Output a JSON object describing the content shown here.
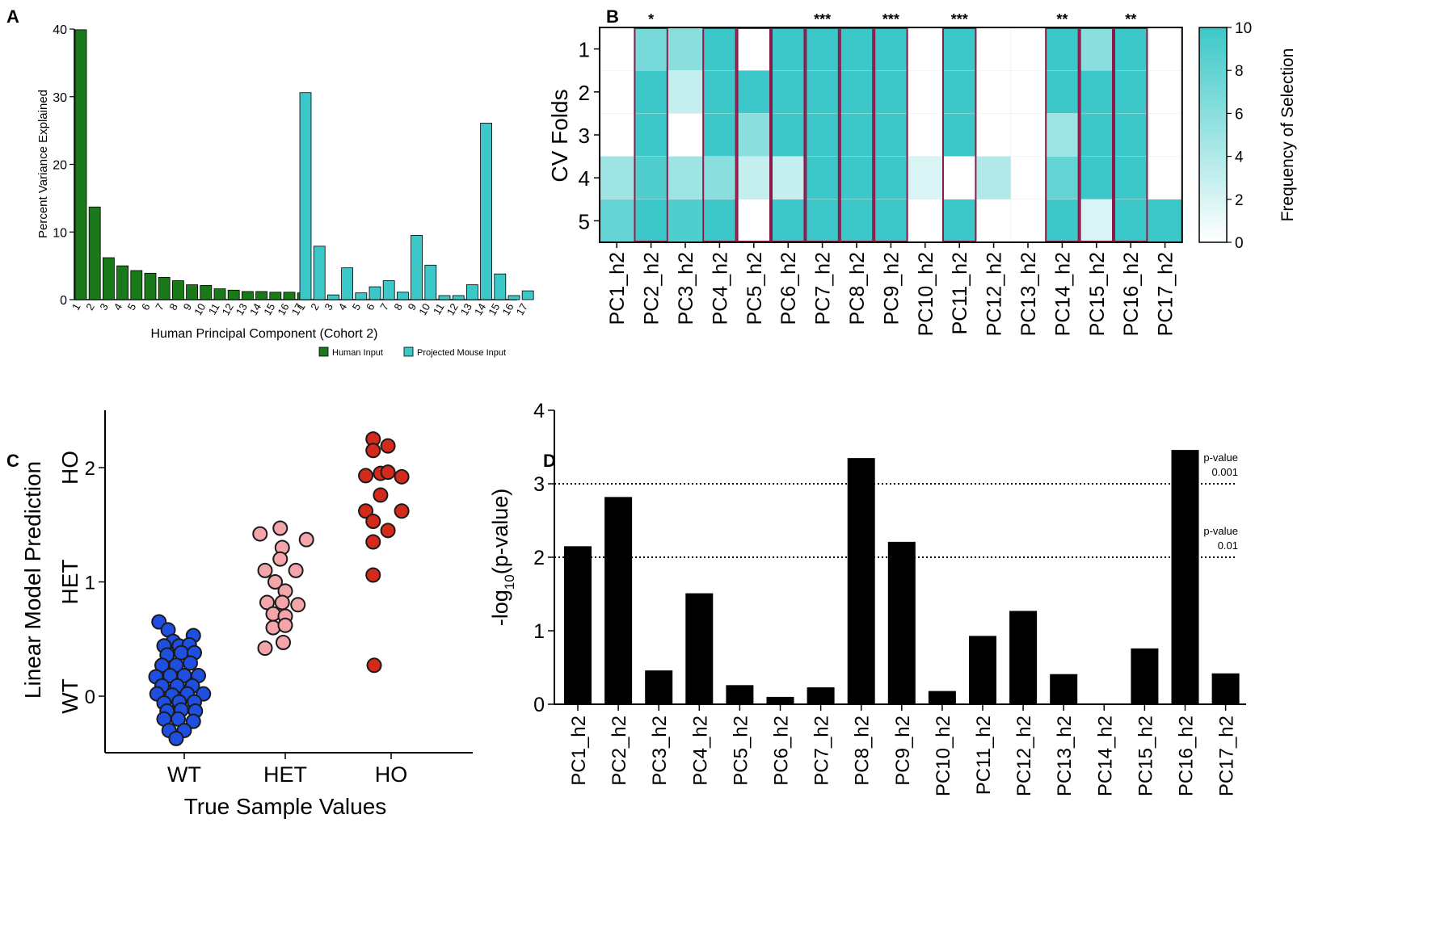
{
  "chart_data": [
    {
      "panel": "A",
      "type": "bar",
      "title": "",
      "ylabel": "Percent Variance Explained",
      "xlabel": "Human Principal Component (Cohort 2)",
      "ylim": [
        0,
        40
      ],
      "yticks": [
        0,
        10,
        20,
        30,
        40
      ],
      "categories": [
        "1",
        "2",
        "3",
        "4",
        "5",
        "6",
        "7",
        "8",
        "9",
        "10",
        "11",
        "12",
        "13",
        "14",
        "15",
        "16",
        "17"
      ],
      "series": [
        {
          "name": "Human Input",
          "color": "#1a7a1a",
          "values": [
            39.9,
            13.7,
            6.2,
            5.0,
            4.3,
            3.9,
            3.3,
            2.8,
            2.2,
            2.1,
            1.6,
            1.4,
            1.2,
            1.2,
            1.1,
            1.1,
            1.0
          ]
        },
        {
          "name": "Projected Mouse Input",
          "color": "#3cc8c8",
          "values": [
            30.6,
            7.9,
            0.7,
            4.7,
            1.0,
            1.9,
            2.8,
            1.1,
            9.5,
            5.1,
            0.6,
            0.6,
            2.2,
            26.1,
            3.8,
            0.6,
            1.3
          ]
        }
      ],
      "legend": "bottom-right"
    },
    {
      "panel": "B",
      "type": "heatmap",
      "ylabel": "CV Folds",
      "colorbar_label": "Frequency of Selection",
      "colorbar_ticks": [
        0,
        2,
        4,
        6,
        8,
        10
      ],
      "zlim": [
        0,
        10
      ],
      "rows": [
        "1",
        "2",
        "3",
        "4",
        "5"
      ],
      "columns": [
        "PC1_h2",
        "PC2_h2",
        "PC3_h2",
        "PC4_h2",
        "PC5_h2",
        "PC6_h2",
        "PC7_h2",
        "PC8_h2",
        "PC9_h2",
        "PC10_h2",
        "PC11_h2",
        "PC12_h2",
        "PC13_h2",
        "PC14_h2",
        "PC15_h2",
        "PC16_h2",
        "PC17_h2"
      ],
      "significance": [
        "",
        "*",
        "",
        "",
        "",
        "",
        "***",
        "",
        "***",
        "",
        "***",
        "",
        "",
        "**",
        "",
        "**",
        ""
      ],
      "highlighted_columns": [
        "PC2_h2",
        "PC4_h2",
        "PC5_h2",
        "PC6_h2",
        "PC7_h2",
        "PC8_h2",
        "PC9_h2",
        "PC11_h2",
        "PC14_h2",
        "PC15_h2",
        "PC16_h2"
      ],
      "values": [
        [
          0,
          7,
          6,
          10,
          0,
          10,
          10,
          10,
          10,
          0,
          10,
          0,
          0,
          10,
          6,
          10,
          0
        ],
        [
          0,
          10,
          3,
          10,
          10,
          10,
          10,
          10,
          10,
          0,
          10,
          0,
          0,
          10,
          10,
          10,
          0
        ],
        [
          0,
          10,
          0,
          10,
          6,
          10,
          10,
          10,
          10,
          0,
          10,
          0,
          0,
          5,
          10,
          10,
          0
        ],
        [
          5,
          9,
          5,
          6,
          3,
          3,
          10,
          10,
          10,
          2,
          0,
          4,
          0,
          8,
          10,
          10,
          0
        ],
        [
          8,
          10,
          9,
          10,
          0,
          10,
          10,
          10,
          10,
          0,
          10,
          0,
          0,
          10,
          2,
          10,
          10
        ]
      ]
    },
    {
      "panel": "C",
      "type": "scatter",
      "title": "",
      "xlabel": "True Sample Values",
      "ylabel": "Linear Model Prediction",
      "categories": [
        "WT",
        "HET",
        "HO"
      ],
      "y_category_labels": [
        "WT",
        "HET",
        "HO"
      ],
      "yticks": [
        0,
        1,
        2
      ],
      "ylim": [
        -0.5,
        2.5
      ],
      "series": [
        {
          "name": "WT",
          "color": "#1f4fe0",
          "points": [
            [
              -0.25,
              0.65
            ],
            [
              -0.16,
              0.58
            ],
            [
              -0.11,
              0.48
            ],
            [
              0.09,
              0.53
            ],
            [
              -0.2,
              0.44
            ],
            [
              -0.05,
              0.44
            ],
            [
              0.05,
              0.45
            ],
            [
              -0.17,
              0.36
            ],
            [
              -0.03,
              0.38
            ],
            [
              0.1,
              0.38
            ],
            [
              -0.22,
              0.27
            ],
            [
              -0.08,
              0.27
            ],
            [
              0.06,
              0.29
            ],
            [
              -0.28,
              0.17
            ],
            [
              -0.14,
              0.18
            ],
            [
              0.0,
              0.18
            ],
            [
              0.14,
              0.18
            ],
            [
              -0.22,
              0.09
            ],
            [
              -0.07,
              0.09
            ],
            [
              0.08,
              0.09
            ],
            [
              -0.27,
              0.02
            ],
            [
              -0.12,
              0.01
            ],
            [
              0.03,
              0.02
            ],
            [
              0.19,
              0.02
            ],
            [
              -0.2,
              -0.06
            ],
            [
              -0.05,
              -0.05
            ],
            [
              0.1,
              -0.05
            ],
            [
              -0.17,
              -0.13
            ],
            [
              -0.03,
              -0.12
            ],
            [
              0.11,
              -0.13
            ],
            [
              -0.2,
              -0.2
            ],
            [
              -0.06,
              -0.2
            ],
            [
              0.09,
              -0.22
            ],
            [
              -0.15,
              -0.3
            ],
            [
              0.0,
              -0.3
            ],
            [
              -0.08,
              -0.37
            ]
          ]
        },
        {
          "name": "HET",
          "color": "#f4a5aa",
          "points": [
            [
              0.75,
              1.42
            ],
            [
              0.95,
              1.47
            ],
            [
              1.2,
              1.37
            ],
            [
              0.97,
              1.3
            ],
            [
              0.8,
              1.1
            ],
            [
              0.95,
              1.2
            ],
            [
              1.1,
              1.1
            ],
            [
              0.9,
              1.0
            ],
            [
              1.0,
              0.92
            ],
            [
              0.82,
              0.82
            ],
            [
              0.97,
              0.82
            ],
            [
              1.12,
              0.8
            ],
            [
              0.88,
              0.72
            ],
            [
              1.0,
              0.7
            ],
            [
              0.88,
              0.6
            ],
            [
              1.0,
              0.62
            ],
            [
              0.8,
              0.42
            ],
            [
              0.98,
              0.47
            ]
          ]
        },
        {
          "name": "HO",
          "color": "#d42a1c",
          "points": [
            [
              1.83,
              2.25
            ],
            [
              1.97,
              2.19
            ],
            [
              1.83,
              2.15
            ],
            [
              1.76,
              1.93
            ],
            [
              1.9,
              1.95
            ],
            [
              1.97,
              1.96
            ],
            [
              2.1,
              1.92
            ],
            [
              1.9,
              1.76
            ],
            [
              1.76,
              1.62
            ],
            [
              1.83,
              1.53
            ],
            [
              1.97,
              1.45
            ],
            [
              2.1,
              1.62
            ],
            [
              1.83,
              1.35
            ],
            [
              1.83,
              1.06
            ],
            [
              1.84,
              0.27
            ]
          ]
        }
      ]
    },
    {
      "panel": "D",
      "type": "bar",
      "title": "",
      "xlabel": "",
      "ylabel": "-log10(p-value)",
      "ylabel_main": "-log",
      "ylabel_sub": "10",
      "ylabel_tail": "(p-value)",
      "ylim": [
        0,
        4
      ],
      "yticks": [
        0,
        1,
        2,
        3,
        4
      ],
      "categories": [
        "PC1_h2",
        "PC2_h2",
        "PC3_h2",
        "PC4_h2",
        "PC5_h2",
        "PC6_h2",
        "PC7_h2",
        "PC8_h2",
        "PC9_h2",
        "PC10_h2",
        "PC11_h2",
        "PC12_h2",
        "PC13_h2",
        "PC14_h2",
        "PC15_h2",
        "PC16_h2",
        "PC17_h2"
      ],
      "values": [
        2.15,
        2.82,
        0.46,
        1.51,
        0.26,
        0.1,
        0.23,
        3.35,
        2.21,
        0.18,
        0.93,
        1.27,
        0.41,
        0.01,
        0.76,
        3.46,
        0.42
      ],
      "color": "#000000",
      "reference_lines": [
        {
          "y": 3,
          "label_top": "p-value",
          "label_bottom": "0.001"
        },
        {
          "y": 2,
          "label_top": "p-value",
          "label_bottom": "0.01"
        }
      ]
    }
  ]
}
